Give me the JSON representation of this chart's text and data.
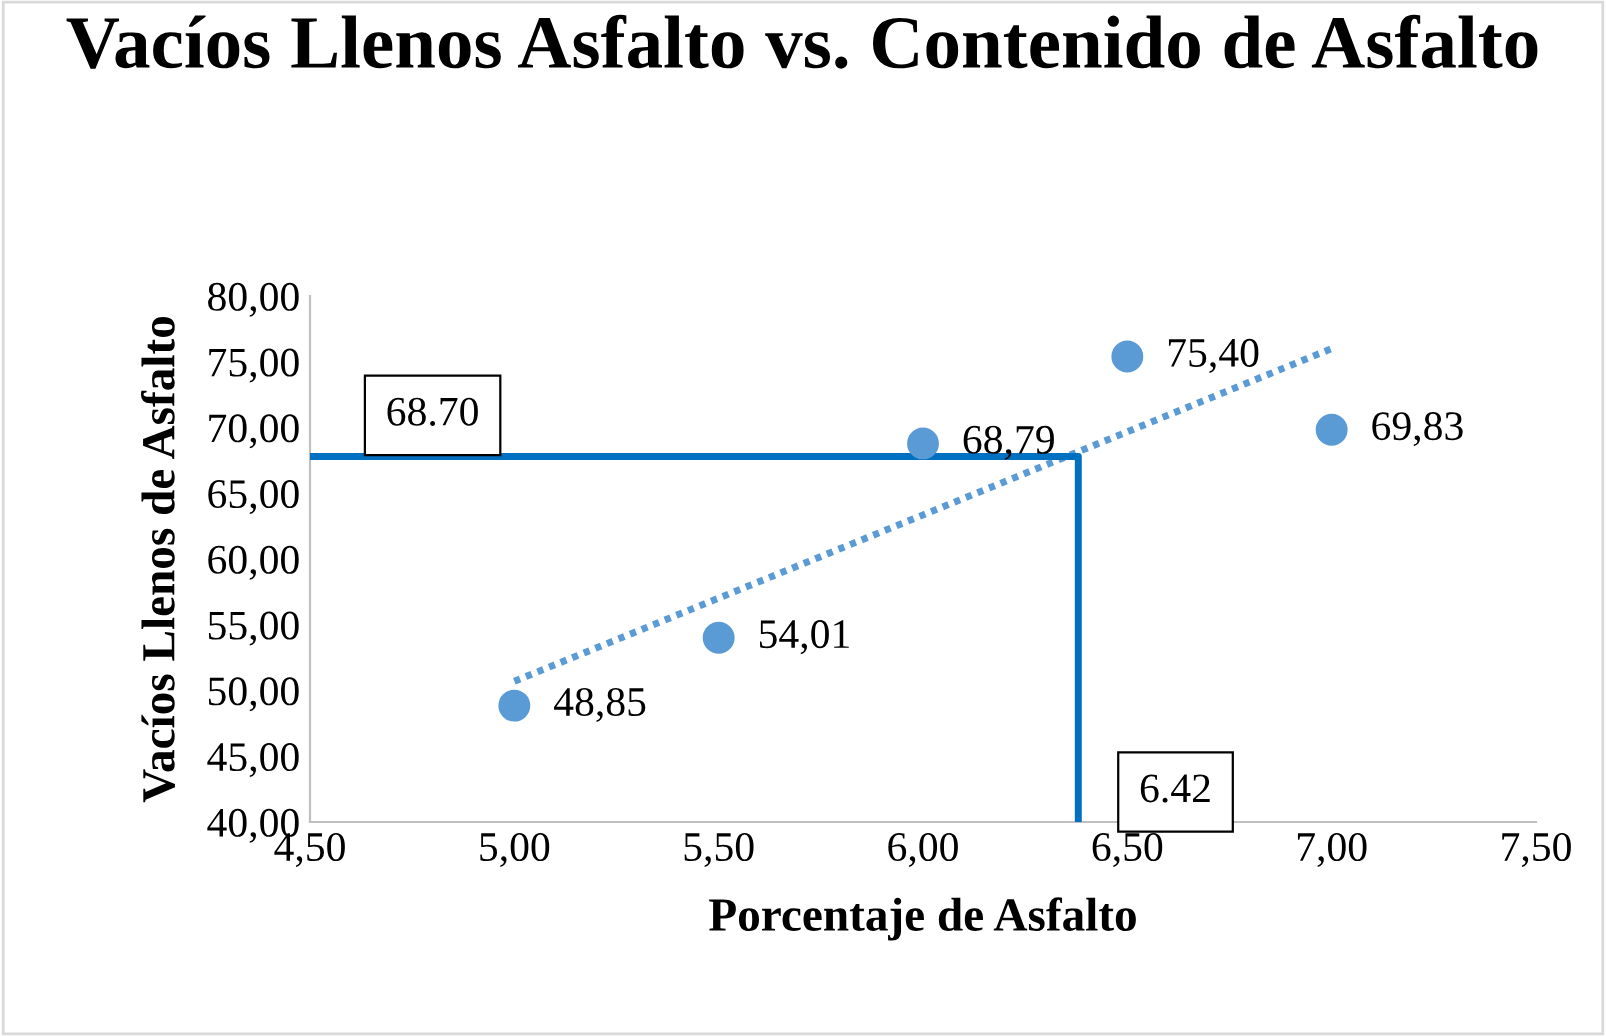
{
  "chart_data": {
    "type": "scatter",
    "title": "Vacíos Llenos Asfalto vs. Contenido de Asfalto",
    "xlabel": "Porcentaje de Asfalto",
    "ylabel": "Vacíos Llenos de Asfalto",
    "x": [
      5.0,
      5.5,
      6.0,
      6.5,
      7.0
    ],
    "series": [
      {
        "color": "#5b9bd5",
        "values": [
          48.85,
          54.01,
          68.79,
          75.4,
          69.83
        ],
        "value_labels": [
          "48,85",
          "54,01",
          "68,79",
          "75,40",
          "69,83"
        ],
        "marker": "circle"
      },
      {
        "type": "line",
        "color": "#5b9bd5",
        "x": [
          5.0,
          7.0
        ],
        "values": [
          50.7,
          76.0
        ],
        "line_style": "dotted",
        "marker": "none"
      },
      {
        "type": "line",
        "color": "#0070c0",
        "x": [
          4.5,
          6.38,
          6.38
        ],
        "values": [
          67.8,
          67.8,
          40.0
        ],
        "line_style": "solid",
        "marker": "none"
      }
    ],
    "annotations": [
      {
        "text": "68.70",
        "x": 4.8,
        "y": 67.8
      },
      {
        "text": "6.42",
        "x": 6.38,
        "y": 40.0
      }
    ],
    "xlim": [
      4.5,
      7.5
    ],
    "ylim": [
      40,
      80
    ],
    "xticks": [
      {
        "value": 4.5,
        "label": "4,50"
      },
      {
        "value": 5.0,
        "label": "5,00"
      },
      {
        "value": 5.5,
        "label": "5,50"
      },
      {
        "value": 6.0,
        "label": "6,00"
      },
      {
        "value": 6.5,
        "label": "6,50"
      },
      {
        "value": 7.0,
        "label": "7,00"
      },
      {
        "value": 7.5,
        "label": "7,50"
      }
    ],
    "yticks": [
      {
        "value": 40,
        "label": "40,00"
      },
      {
        "value": 45,
        "label": "45,00"
      },
      {
        "value": 50,
        "label": "50,00"
      },
      {
        "value": 55,
        "label": "55,00"
      },
      {
        "value": 60,
        "label": "60,00"
      },
      {
        "value": 65,
        "label": "65,00"
      },
      {
        "value": 70,
        "label": "70,00"
      },
      {
        "value": 75,
        "label": "75,00"
      },
      {
        "value": 80,
        "label": "80,00"
      }
    ],
    "grid": false,
    "legend": false
  }
}
